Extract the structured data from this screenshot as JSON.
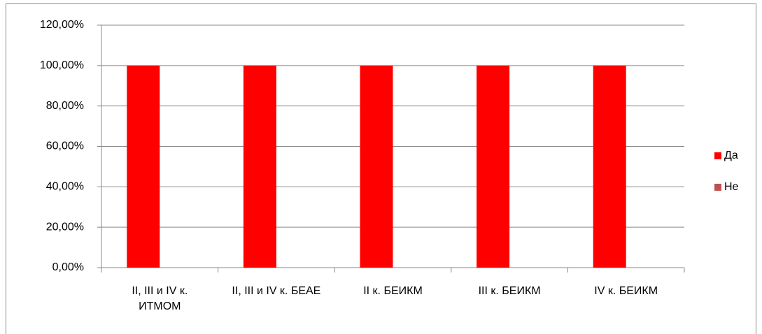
{
  "chart_data": {
    "type": "bar",
    "categories": [
      "II, III и IV к. ИТМОМ",
      "II, III и IV к. БЕАЕ",
      "II к. БЕИКМ",
      "III к. БЕИКМ",
      "IV к. БЕИКМ"
    ],
    "series": [
      {
        "name": "Да",
        "color": "#ff0000",
        "values": [
          100,
          100,
          100,
          100,
          100
        ]
      },
      {
        "name": "Не",
        "color": "#c0504d",
        "values": [
          0,
          0,
          0,
          0,
          0
        ]
      }
    ],
    "ylim": [
      0,
      120
    ],
    "yticks": [
      {
        "value": 0,
        "label": "0,00%"
      },
      {
        "value": 20,
        "label": "20,00%"
      },
      {
        "value": 40,
        "label": "40,00%"
      },
      {
        "value": 60,
        "label": "60,00%"
      },
      {
        "value": 80,
        "label": "80,00%"
      },
      {
        "value": 100,
        "label": "100,00%"
      },
      {
        "value": 120,
        "label": "120,00%"
      }
    ],
    "grid": true,
    "legend": "right"
  }
}
